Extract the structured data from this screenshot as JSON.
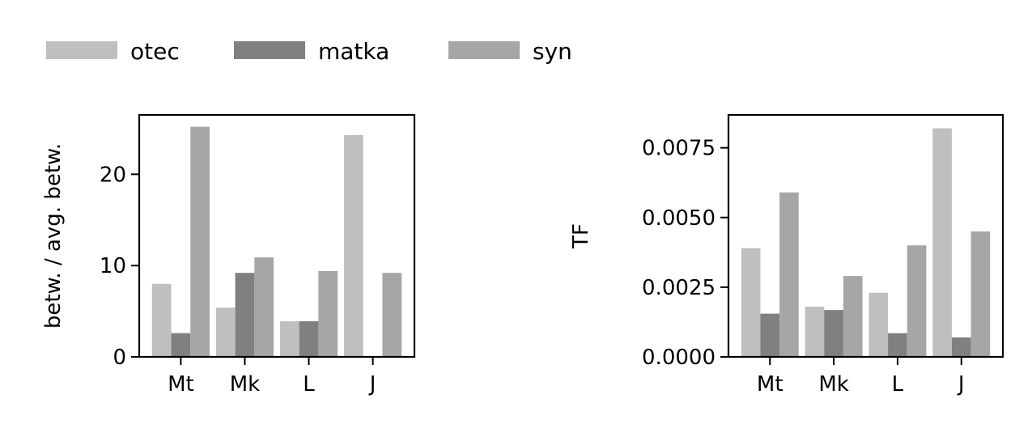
{
  "legend": {
    "placement": "top-left",
    "entries": [
      {
        "label": "otec",
        "color": "#bfbfbf"
      },
      {
        "label": "matka",
        "color": "#808080"
      },
      {
        "label": "syn",
        "color": "#a6a6a6"
      }
    ]
  },
  "chart_data": [
    {
      "type": "bar",
      "categories": [
        "Mt",
        "Mk",
        "L",
        "J"
      ],
      "ylabel": "betw. / avg. betw.",
      "xlabel": "",
      "ylim": [
        0,
        26.5
      ],
      "yticks": [
        0,
        10,
        20
      ],
      "ytick_labels": [
        "0",
        "10",
        "20"
      ],
      "grid": false,
      "series": [
        {
          "name": "otec",
          "color": "#bfbfbf",
          "values": [
            8.0,
            5.4,
            3.9,
            24.3
          ]
        },
        {
          "name": "matka",
          "color": "#808080",
          "values": [
            2.6,
            9.2,
            3.9,
            0
          ]
        },
        {
          "name": "syn",
          "color": "#a6a6a6",
          "values": [
            25.2,
            10.9,
            9.4,
            9.2
          ]
        }
      ]
    },
    {
      "type": "bar",
      "categories": [
        "Mt",
        "Mk",
        "L",
        "J"
      ],
      "ylabel": "TF",
      "xlabel": "",
      "ylim": [
        0,
        0.00868
      ],
      "yticks": [
        0,
        0.0025,
        0.005,
        0.0075
      ],
      "ytick_labels": [
        "0.0000",
        "0.0025",
        "0.0050",
        "0.0075"
      ],
      "grid": false,
      "series": [
        {
          "name": "otec",
          "color": "#bfbfbf",
          "values": [
            0.0039,
            0.0018,
            0.0023,
            0.0082
          ]
        },
        {
          "name": "matka",
          "color": "#808080",
          "values": [
            0.00155,
            0.00168,
            0.00085,
            0.0007
          ]
        },
        {
          "name": "syn",
          "color": "#a6a6a6",
          "values": [
            0.0059,
            0.0029,
            0.004,
            0.0045
          ]
        }
      ]
    }
  ]
}
